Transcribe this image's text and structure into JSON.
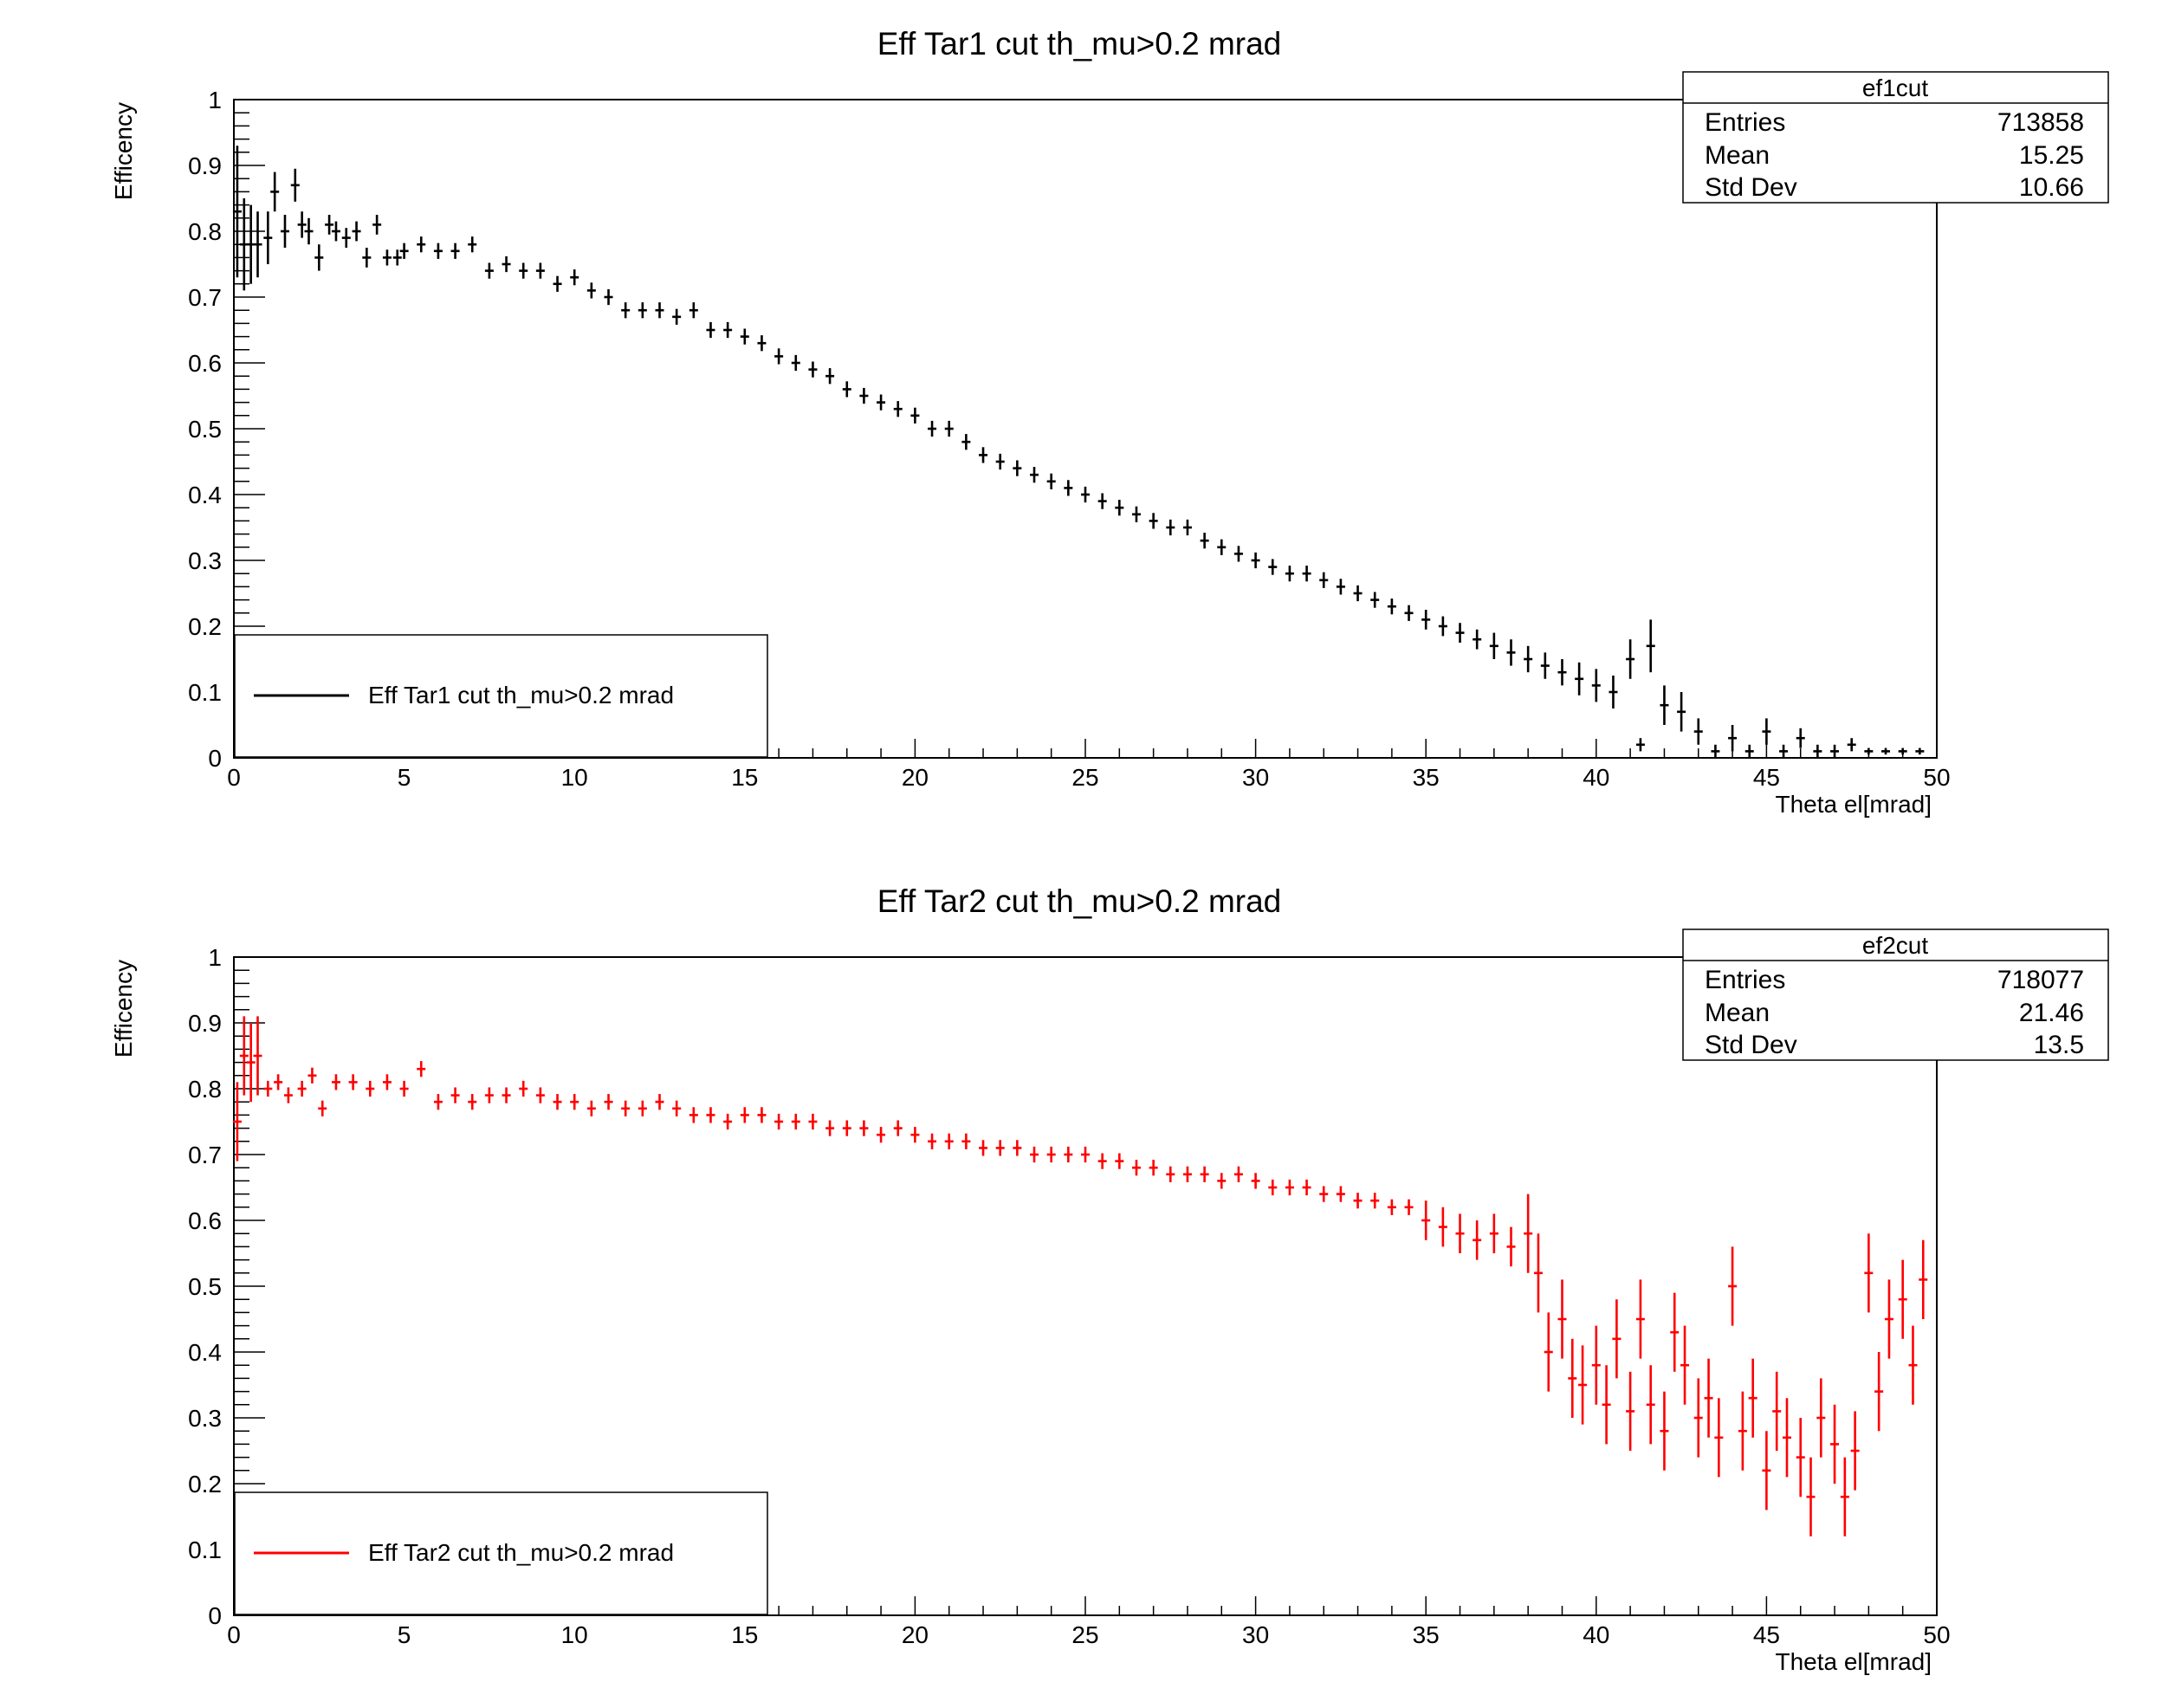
{
  "chart_data": [
    {
      "type": "scatter",
      "title": "Eff Tar1 cut th_mu>0.2 mrad",
      "xlabel": "Theta el[mrad]",
      "ylabel": "Efficency",
      "xlim": [
        0,
        50
      ],
      "ylim": [
        0,
        1
      ],
      "x_ticks": [
        "0",
        "5",
        "10",
        "15",
        "20",
        "25",
        "30",
        "35",
        "40",
        "45",
        "50"
      ],
      "y_ticks": [
        "0",
        "0.1",
        "0.2",
        "0.3",
        "0.4",
        "0.5",
        "0.6",
        "0.7",
        "0.8",
        "0.9",
        "1"
      ],
      "color": "#000000",
      "grid": false,
      "legend": {
        "position": "bottom-left",
        "label": "Eff Tar1 cut th_mu>0.2 mrad"
      },
      "stats": {
        "name": "ef1cut",
        "rows": [
          {
            "label": "Entries",
            "value": "713858"
          },
          {
            "label": "Mean",
            "value": "15.25"
          },
          {
            "label": "Std Dev",
            "value": "10.66"
          }
        ]
      },
      "series": [
        {
          "x": [
            0.1,
            0.3,
            0.5,
            0.7,
            1.0,
            1.2,
            1.5,
            1.8,
            2.0,
            2.2,
            2.5,
            2.8,
            3.0,
            3.3,
            3.6,
            3.9,
            4.2,
            4.5,
            4.8,
            5.0,
            5.5,
            6.0,
            6.5,
            7.0,
            7.5,
            8.0,
            8.5,
            9.0,
            9.5,
            10.0,
            10.5,
            11.0,
            11.5,
            12.0,
            12.5,
            13.0,
            13.5,
            14.0,
            14.5,
            15.0,
            15.5,
            16.0,
            16.5,
            17.0,
            17.5,
            18.0,
            18.5,
            19.0,
            19.5,
            20.0,
            20.5,
            21.0,
            21.5,
            22.0,
            22.5,
            23.0,
            23.5,
            24.0,
            24.5,
            25.0,
            25.5,
            26.0,
            26.5,
            27.0,
            27.5,
            28.0,
            28.5,
            29.0,
            29.5,
            30.0,
            30.5,
            31.0,
            31.5,
            32.0,
            32.5,
            33.0,
            33.5,
            34.0,
            34.5,
            35.0,
            35.5,
            36.0,
            36.5,
            37.0,
            37.5,
            38.0,
            38.5,
            39.0,
            39.5,
            40.0,
            40.5,
            41.0,
            41.3,
            41.6,
            42.0,
            42.5,
            43.0,
            43.5,
            44.0,
            44.5,
            45.0,
            45.5,
            46.0,
            46.5,
            47.0,
            47.5,
            48.0,
            48.5,
            49.0,
            49.5
          ],
          "y": [
            0.83,
            0.78,
            0.78,
            0.78,
            0.79,
            0.86,
            0.8,
            0.87,
            0.81,
            0.8,
            0.76,
            0.81,
            0.8,
            0.79,
            0.8,
            0.76,
            0.81,
            0.76,
            0.76,
            0.77,
            0.78,
            0.77,
            0.77,
            0.78,
            0.74,
            0.75,
            0.74,
            0.74,
            0.72,
            0.73,
            0.71,
            0.7,
            0.68,
            0.68,
            0.68,
            0.67,
            0.68,
            0.65,
            0.65,
            0.64,
            0.63,
            0.61,
            0.6,
            0.59,
            0.58,
            0.56,
            0.55,
            0.54,
            0.53,
            0.52,
            0.5,
            0.5,
            0.48,
            0.46,
            0.45,
            0.44,
            0.43,
            0.42,
            0.41,
            0.4,
            0.39,
            0.38,
            0.37,
            0.36,
            0.35,
            0.35,
            0.33,
            0.32,
            0.31,
            0.3,
            0.29,
            0.28,
            0.28,
            0.27,
            0.26,
            0.25,
            0.24,
            0.23,
            0.22,
            0.21,
            0.2,
            0.19,
            0.18,
            0.17,
            0.16,
            0.15,
            0.14,
            0.13,
            0.12,
            0.11,
            0.1,
            0.15,
            0.02,
            0.17,
            0.08,
            0.07,
            0.04,
            0.01,
            0.03,
            0.01,
            0.04,
            0.01,
            0.03,
            0.01,
            0.01,
            0.02,
            0.01,
            0.01,
            0.01,
            0.01
          ],
          "err": [
            0.1,
            0.07,
            0.06,
            0.05,
            0.04,
            0.03,
            0.025,
            0.025,
            0.02,
            0.02,
            0.02,
            0.015,
            0.015,
            0.015,
            0.015,
            0.015,
            0.015,
            0.012,
            0.012,
            0.012,
            0.012,
            0.012,
            0.012,
            0.012,
            0.012,
            0.012,
            0.012,
            0.012,
            0.012,
            0.012,
            0.012,
            0.012,
            0.012,
            0.012,
            0.012,
            0.012,
            0.012,
            0.012,
            0.012,
            0.012,
            0.012,
            0.012,
            0.012,
            0.012,
            0.012,
            0.012,
            0.012,
            0.012,
            0.012,
            0.012,
            0.012,
            0.012,
            0.012,
            0.012,
            0.012,
            0.012,
            0.012,
            0.012,
            0.012,
            0.012,
            0.012,
            0.012,
            0.012,
            0.012,
            0.012,
            0.012,
            0.012,
            0.012,
            0.012,
            0.012,
            0.012,
            0.012,
            0.012,
            0.012,
            0.012,
            0.012,
            0.012,
            0.012,
            0.012,
            0.015,
            0.015,
            0.015,
            0.015,
            0.02,
            0.02,
            0.02,
            0.02,
            0.02,
            0.025,
            0.025,
            0.025,
            0.03,
            0.01,
            0.04,
            0.03,
            0.03,
            0.02,
            0.01,
            0.02,
            0.01,
            0.02,
            0.01,
            0.015,
            0.01,
            0.01,
            0.01,
            0.005,
            0.005,
            0.005,
            0.005
          ]
        }
      ]
    },
    {
      "type": "scatter",
      "title": "Eff Tar2 cut th_mu>0.2 mrad",
      "xlabel": "Theta el[mrad]",
      "ylabel": "Efficency",
      "xlim": [
        0,
        50
      ],
      "ylim": [
        0,
        1
      ],
      "x_ticks": [
        "0",
        "5",
        "10",
        "15",
        "20",
        "25",
        "30",
        "35",
        "40",
        "45",
        "50"
      ],
      "y_ticks": [
        "0",
        "0.1",
        "0.2",
        "0.3",
        "0.4",
        "0.5",
        "0.6",
        "0.7",
        "0.8",
        "0.9",
        "1"
      ],
      "color": "#ff0000",
      "grid": false,
      "legend": {
        "position": "bottom-left",
        "label": "Eff Tar2 cut th_mu>0.2 mrad"
      },
      "stats": {
        "name": "ef2cut",
        "rows": [
          {
            "label": "Entries",
            "value": "718077"
          },
          {
            "label": "Mean",
            "value": "21.46"
          },
          {
            "label": "Std Dev",
            "value": "13.5"
          }
        ]
      },
      "series": [
        {
          "x": [
            0.1,
            0.3,
            0.5,
            0.7,
            1.0,
            1.3,
            1.6,
            2.0,
            2.3,
            2.6,
            3.0,
            3.5,
            4.0,
            4.5,
            5.0,
            5.5,
            6.0,
            6.5,
            7.0,
            7.5,
            8.0,
            8.5,
            9.0,
            9.5,
            10.0,
            10.5,
            11.0,
            11.5,
            12.0,
            12.5,
            13.0,
            13.5,
            14.0,
            14.5,
            15.0,
            15.5,
            16.0,
            16.5,
            17.0,
            17.5,
            18.0,
            18.5,
            19.0,
            19.5,
            20.0,
            20.5,
            21.0,
            21.5,
            22.0,
            22.5,
            23.0,
            23.5,
            24.0,
            24.5,
            25.0,
            25.5,
            26.0,
            26.5,
            27.0,
            27.5,
            28.0,
            28.5,
            29.0,
            29.5,
            30.0,
            30.5,
            31.0,
            31.5,
            32.0,
            32.5,
            33.0,
            33.5,
            34.0,
            34.5,
            35.0,
            35.5,
            36.0,
            36.5,
            37.0,
            37.5,
            38.0,
            38.3,
            38.6,
            39.0,
            39.3,
            39.6,
            40.0,
            40.3,
            40.6,
            41.0,
            41.3,
            41.6,
            42.0,
            42.3,
            42.6,
            43.0,
            43.3,
            43.6,
            44.0,
            44.3,
            44.6,
            45.0,
            45.3,
            45.6,
            46.0,
            46.3,
            46.6,
            47.0,
            47.3,
            47.6,
            48.0,
            48.3,
            48.6,
            49.0,
            49.3,
            49.6
          ],
          "y": [
            0.75,
            0.85,
            0.84,
            0.85,
            0.8,
            0.81,
            0.79,
            0.8,
            0.82,
            0.77,
            0.81,
            0.81,
            0.8,
            0.81,
            0.8,
            0.83,
            0.78,
            0.79,
            0.78,
            0.79,
            0.79,
            0.8,
            0.79,
            0.78,
            0.78,
            0.77,
            0.78,
            0.77,
            0.77,
            0.78,
            0.77,
            0.76,
            0.76,
            0.75,
            0.76,
            0.76,
            0.75,
            0.75,
            0.75,
            0.74,
            0.74,
            0.74,
            0.73,
            0.74,
            0.73,
            0.72,
            0.72,
            0.72,
            0.71,
            0.71,
            0.71,
            0.7,
            0.7,
            0.7,
            0.7,
            0.69,
            0.69,
            0.68,
            0.68,
            0.67,
            0.67,
            0.67,
            0.66,
            0.67,
            0.66,
            0.65,
            0.65,
            0.65,
            0.64,
            0.64,
            0.63,
            0.63,
            0.62,
            0.62,
            0.6,
            0.59,
            0.58,
            0.57,
            0.58,
            0.56,
            0.58,
            0.52,
            0.4,
            0.45,
            0.36,
            0.35,
            0.38,
            0.32,
            0.42,
            0.31,
            0.45,
            0.32,
            0.28,
            0.43,
            0.38,
            0.3,
            0.33,
            0.27,
            0.5,
            0.28,
            0.33,
            0.22,
            0.31,
            0.27,
            0.24,
            0.18,
            0.3,
            0.26,
            0.18,
            0.25,
            0.52,
            0.34,
            0.45,
            0.48,
            0.38,
            0.51
          ]
        }
      ]
    }
  ]
}
